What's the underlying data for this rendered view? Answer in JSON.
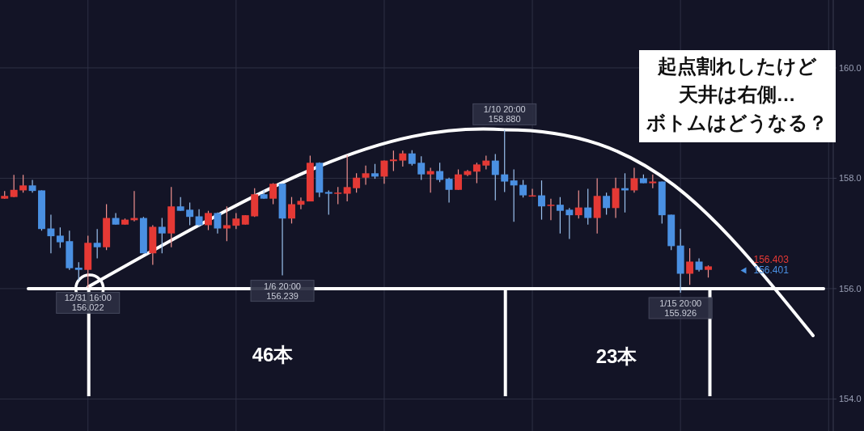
{
  "chart_data": {
    "type": "candlestick",
    "categories": [
      null,
      null,
      null,
      null,
      null,
      null,
      null,
      null,
      null,
      null,
      null,
      null,
      null,
      null,
      null,
      null,
      null,
      null,
      null,
      null,
      null,
      null,
      null,
      null,
      null,
      null,
      null,
      null,
      null,
      null,
      null,
      null,
      null,
      null,
      null,
      null,
      null,
      null,
      null,
      null,
      null,
      null,
      null,
      null,
      null,
      null,
      null,
      null,
      null,
      null,
      null,
      null,
      null,
      null,
      null,
      null,
      null,
      null,
      null,
      null,
      null,
      null,
      null,
      null,
      null,
      null,
      null,
      null,
      null,
      null,
      null,
      null,
      null,
      null,
      null,
      null,
      null,
      null,
      null,
      null,
      null,
      null,
      null,
      null,
      null,
      null,
      null,
      null,
      null,
      null
    ],
    "ohlc": [
      [
        157.63,
        157.77,
        157.63,
        157.68
      ],
      [
        157.66,
        158.06,
        157.66,
        157.79
      ],
      [
        157.78,
        158.06,
        157.74,
        157.87
      ],
      [
        157.87,
        157.97,
        157.74,
        157.77
      ],
      [
        157.78,
        157.78,
        157.05,
        157.08
      ],
      [
        157.09,
        157.34,
        156.64,
        156.95
      ],
      [
        156.96,
        157.11,
        156.74,
        156.84
      ],
      [
        156.86,
        157.05,
        156.34,
        156.37
      ],
      [
        156.38,
        156.48,
        156.15,
        156.34
      ],
      [
        156.34,
        156.96,
        156.022,
        156.83
      ],
      [
        156.83,
        157.08,
        156.55,
        156.75
      ],
      [
        156.75,
        157.53,
        156.7,
        157.28
      ],
      [
        157.28,
        157.37,
        157.16,
        157.16
      ],
      [
        157.16,
        157.27,
        157.16,
        157.25
      ],
      [
        157.24,
        157.77,
        157.22,
        157.28
      ],
      [
        157.28,
        157.3,
        156.64,
        156.64
      ],
      [
        156.64,
        157.15,
        156.43,
        157.12
      ],
      [
        157.12,
        157.28,
        156.64,
        157.0
      ],
      [
        157.0,
        157.84,
        156.75,
        157.49
      ],
      [
        157.49,
        157.66,
        157.41,
        157.41
      ],
      [
        157.43,
        157.56,
        157.15,
        157.3
      ],
      [
        157.31,
        157.44,
        157.12,
        157.15
      ],
      [
        157.15,
        157.41,
        157.06,
        157.37
      ],
      [
        157.37,
        157.38,
        157.0,
        157.09
      ],
      [
        157.09,
        157.49,
        156.86,
        157.15
      ],
      [
        157.14,
        157.37,
        157.08,
        157.27
      ],
      [
        157.16,
        157.33,
        157.16,
        157.33
      ],
      [
        157.31,
        157.82,
        157.3,
        157.71
      ],
      [
        157.71,
        157.79,
        157.63,
        157.63
      ],
      [
        157.63,
        157.91,
        157.53,
        157.9
      ],
      [
        157.9,
        157.91,
        156.239,
        157.27
      ],
      [
        157.27,
        157.66,
        157.18,
        157.53
      ],
      [
        157.52,
        157.65,
        157.44,
        157.59
      ],
      [
        157.58,
        158.41,
        157.58,
        158.28
      ],
      [
        158.28,
        158.29,
        157.66,
        157.74
      ],
      [
        157.75,
        157.78,
        157.34,
        157.72
      ],
      [
        157.72,
        157.84,
        157.53,
        157.74
      ],
      [
        157.72,
        158.42,
        157.58,
        157.84
      ],
      [
        157.82,
        158.09,
        157.74,
        158.01
      ],
      [
        158.01,
        158.23,
        157.88,
        158.09
      ],
      [
        158.09,
        158.26,
        157.99,
        158.03
      ],
      [
        158.03,
        158.32,
        157.9,
        158.32
      ],
      [
        158.31,
        158.5,
        158.13,
        158.34
      ],
      [
        158.32,
        158.5,
        158.21,
        158.45
      ],
      [
        158.45,
        158.51,
        158.23,
        158.26
      ],
      [
        158.28,
        158.4,
        157.97,
        158.07
      ],
      [
        158.07,
        158.19,
        157.74,
        158.13
      ],
      [
        158.13,
        158.28,
        157.93,
        157.97
      ],
      [
        157.99,
        158.01,
        157.56,
        157.79
      ],
      [
        157.79,
        158.16,
        157.79,
        158.07
      ],
      [
        158.06,
        158.15,
        158.04,
        158.13
      ],
      [
        158.12,
        158.28,
        157.91,
        158.25
      ],
      [
        158.23,
        158.41,
        158.16,
        158.32
      ],
      [
        158.32,
        158.44,
        157.6,
        158.06
      ],
      [
        158.07,
        158.88,
        157.75,
        157.94
      ],
      [
        157.96,
        158.16,
        157.21,
        157.87
      ],
      [
        157.88,
        157.97,
        157.65,
        157.69
      ],
      [
        157.68,
        157.81,
        157.68,
        157.69
      ],
      [
        157.69,
        157.96,
        157.25,
        157.49
      ],
      [
        157.5,
        157.63,
        157.24,
        157.52
      ],
      [
        157.52,
        157.66,
        157.0,
        157.41
      ],
      [
        157.43,
        157.46,
        156.9,
        157.33
      ],
      [
        157.33,
        157.78,
        157.27,
        157.47
      ],
      [
        157.47,
        157.81,
        157.16,
        157.28
      ],
      [
        157.28,
        158.0,
        157.0,
        157.68
      ],
      [
        157.68,
        157.74,
        157.34,
        157.46
      ],
      [
        157.46,
        158.01,
        157.28,
        157.82
      ],
      [
        157.82,
        158.09,
        157.38,
        157.78
      ],
      [
        157.78,
        158.19,
        157.74,
        158.0
      ],
      [
        158.0,
        158.07,
        157.91,
        157.91
      ],
      [
        157.91,
        158.07,
        157.82,
        157.94
      ],
      [
        157.94,
        157.94,
        157.18,
        157.33
      ],
      [
        157.34,
        157.34,
        156.7,
        156.77
      ],
      [
        156.78,
        157.08,
        155.926,
        156.27
      ],
      [
        156.27,
        156.73,
        156.07,
        156.49
      ],
      [
        156.49,
        156.55,
        156.31,
        156.34
      ],
      [
        156.34,
        156.42,
        156.2,
        156.403
      ],
      null,
      null,
      null,
      null,
      null,
      null,
      null,
      null,
      null,
      null,
      null,
      null,
      null
    ],
    "colors": [
      "#e53935",
      "#e53935",
      "#e53935",
      "#4a90e2",
      "#4a90e2",
      "#4a90e2",
      "#4a90e2",
      "#4a90e2",
      "#4a90e2",
      "#e53935",
      "#4a90e2",
      "#e53935",
      "#4a90e2",
      "#e53935",
      "#e53935",
      "#4a90e2",
      "#e53935",
      "#4a90e2",
      "#e53935",
      "#4a90e2",
      "#4a90e2",
      "#4a90e2",
      "#e53935",
      "#4a90e2",
      "#e53935",
      "#e53935",
      "#e53935",
      "#e53935",
      "#4a90e2",
      "#e53935",
      "#4a90e2",
      "#e53935",
      "#e53935",
      "#e53935",
      "#4a90e2",
      "#4a90e2",
      "#e53935",
      "#e53935",
      "#e53935",
      "#e53935",
      "#4a90e2",
      "#e53935",
      "#e53935",
      "#e53935",
      "#4a90e2",
      "#4a90e2",
      "#e53935",
      "#4a90e2",
      "#4a90e2",
      "#e53935",
      "#e53935",
      "#e53935",
      "#e53935",
      "#4a90e2",
      "#4a90e2",
      "#4a90e2",
      "#4a90e2",
      "#e53935",
      "#4a90e2",
      "#e53935",
      "#4a90e2",
      "#4a90e2",
      "#e53935",
      "#4a90e2",
      "#e53935",
      "#4a90e2",
      "#e53935",
      "#4a90e2",
      "#e53935",
      "#4a90e2",
      "#e53935",
      "#4a90e2",
      "#4a90e2",
      "#4a90e2",
      "#e53935",
      "#4a90e2",
      "#e53935",
      null,
      null,
      null,
      null,
      null,
      null,
      null,
      null,
      null,
      null,
      null,
      null,
      null
    ],
    "ylim": [
      153.42,
      161.23
    ],
    "yticks": [
      {
        "value": 154,
        "label": "154.0"
      },
      {
        "value": 156,
        "label": "156.0"
      },
      {
        "value": 158,
        "label": "158.0"
      },
      {
        "value": 160,
        "label": "160.0"
      }
    ],
    "tick_labels": "y",
    "grid": true,
    "ref_lines": [
      {
        "axis": "y",
        "value": 156,
        "color": "#ffffff"
      }
    ],
    "annotations": [
      {
        "text": "12/31 16:00\n156.022",
        "y": 156.022
      },
      {
        "text": "1/6 20:00\n156.239",
        "y": 156.239
      },
      {
        "text": "1/10 20:00\n158.880",
        "y": 158.88
      },
      {
        "text": "1/15 20:00\n155.926",
        "y": 155.926
      },
      "156.403",
      "156.401",
      "46本",
      "23本",
      "起点割れしたけど",
      "天井は右側…",
      "ボトムはどうなる？"
    ]
  }
}
